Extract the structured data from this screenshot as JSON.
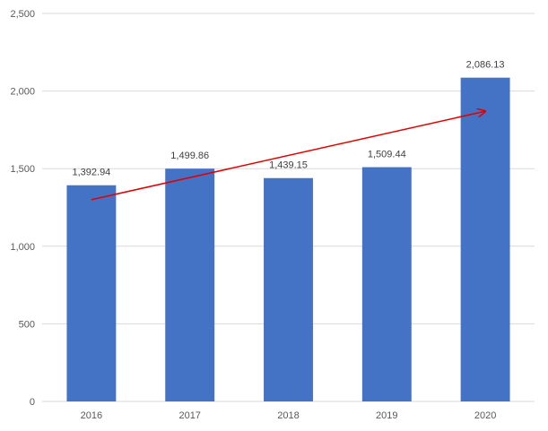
{
  "chart_data": {
    "type": "bar",
    "categories": [
      "2016",
      "2017",
      "2018",
      "2019",
      "2020"
    ],
    "values": [
      1392.94,
      1499.86,
      1439.15,
      1509.44,
      2086.13
    ],
    "value_labels": [
      "1,392.94",
      "1,499.86",
      "1,439.15",
      "1,509.44",
      "2,086.13"
    ],
    "y_ticks": [
      0,
      500,
      1000,
      1500,
      2000,
      2500
    ],
    "y_tick_labels": [
      "0",
      "500",
      "1,000",
      "1,500",
      "2,000",
      "2,500"
    ],
    "ylim": [
      0,
      2500
    ],
    "grid": true,
    "legend": "none",
    "title": "",
    "xlabel": "",
    "ylabel": "",
    "bar_color": "#4472c4",
    "trend_arrow": {
      "from": [
        "2016",
        1300
      ],
      "to": [
        "2020",
        1870
      ],
      "color": "#e00000"
    }
  }
}
